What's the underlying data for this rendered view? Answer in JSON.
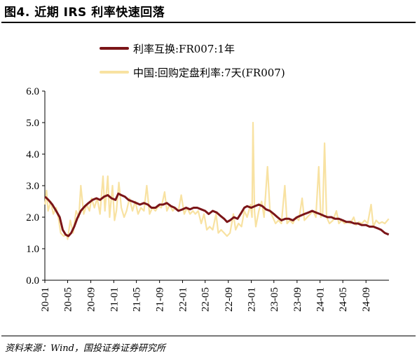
{
  "header": {
    "title": "图4. 近期 IRS 利率快速回落"
  },
  "footer": {
    "source": "资料来源：Wind，国投证券证券研究所"
  },
  "chart_data": {
    "type": "line",
    "title": "",
    "xlabel": "",
    "ylabel": "",
    "ylim": [
      0,
      6
    ],
    "yticks": [
      "0.0",
      "1.0",
      "2.0",
      "3.0",
      "4.0",
      "5.0",
      "6.0"
    ],
    "x_range": [
      "2020-01",
      "2024-12"
    ],
    "xticks": [
      "20-01",
      "20-05",
      "20-09",
      "21-01",
      "21-05",
      "21-09",
      "22-01",
      "22-05",
      "22-09",
      "23-01",
      "23-05",
      "23-09",
      "24-01",
      "24-05",
      "24-09"
    ],
    "grid": false,
    "legend": "top",
    "series": [
      {
        "name": "利率互换:FR007:1年",
        "color": "#7b1518",
        "points": [
          [
            "2020-01-02",
            2.65
          ],
          [
            "2020-01-20",
            2.55
          ],
          [
            "2020-02-10",
            2.4
          ],
          [
            "2020-03-01",
            2.2
          ],
          [
            "2020-03-20",
            2.0
          ],
          [
            "2020-04-05",
            1.6
          ],
          [
            "2020-04-20",
            1.45
          ],
          [
            "2020-05-05",
            1.4
          ],
          [
            "2020-05-20",
            1.5
          ],
          [
            "2020-06-05",
            1.7
          ],
          [
            "2020-06-20",
            1.95
          ],
          [
            "2020-07-10",
            2.2
          ],
          [
            "2020-08-01",
            2.35
          ],
          [
            "2020-08-20",
            2.45
          ],
          [
            "2020-09-10",
            2.55
          ],
          [
            "2020-10-01",
            2.6
          ],
          [
            "2020-10-20",
            2.55
          ],
          [
            "2020-11-10",
            2.65
          ],
          [
            "2020-11-30",
            2.7
          ],
          [
            "2020-12-20",
            2.6
          ],
          [
            "2021-01-10",
            2.55
          ],
          [
            "2021-01-25",
            2.75
          ],
          [
            "2021-02-10",
            2.7
          ],
          [
            "2021-03-01",
            2.65
          ],
          [
            "2021-03-20",
            2.55
          ],
          [
            "2021-04-10",
            2.5
          ],
          [
            "2021-05-01",
            2.45
          ],
          [
            "2021-05-20",
            2.4
          ],
          [
            "2021-06-10",
            2.45
          ],
          [
            "2021-07-01",
            2.4
          ],
          [
            "2021-07-20",
            2.3
          ],
          [
            "2021-08-10",
            2.3
          ],
          [
            "2021-09-01",
            2.4
          ],
          [
            "2021-09-20",
            2.4
          ],
          [
            "2021-10-10",
            2.45
          ],
          [
            "2021-11-01",
            2.35
          ],
          [
            "2021-11-20",
            2.3
          ],
          [
            "2021-12-10",
            2.2
          ],
          [
            "2022-01-01",
            2.25
          ],
          [
            "2022-01-20",
            2.3
          ],
          [
            "2022-02-10",
            2.25
          ],
          [
            "2022-03-01",
            2.3
          ],
          [
            "2022-03-20",
            2.3
          ],
          [
            "2022-04-10",
            2.25
          ],
          [
            "2022-05-01",
            2.2
          ],
          [
            "2022-05-20",
            2.1
          ],
          [
            "2022-06-10",
            2.2
          ],
          [
            "2022-07-01",
            2.15
          ],
          [
            "2022-07-20",
            2.05
          ],
          [
            "2022-08-10",
            1.95
          ],
          [
            "2022-08-25",
            1.85
          ],
          [
            "2022-09-10",
            1.9
          ],
          [
            "2022-10-01",
            2.0
          ],
          [
            "2022-10-20",
            1.95
          ],
          [
            "2022-11-10",
            2.15
          ],
          [
            "2022-11-25",
            2.3
          ],
          [
            "2022-12-10",
            2.35
          ],
          [
            "2023-01-01",
            2.3
          ],
          [
            "2023-01-20",
            2.35
          ],
          [
            "2023-02-10",
            2.4
          ],
          [
            "2023-03-01",
            2.35
          ],
          [
            "2023-03-20",
            2.25
          ],
          [
            "2023-04-10",
            2.2
          ],
          [
            "2023-05-01",
            2.1
          ],
          [
            "2023-05-20",
            2.0
          ],
          [
            "2023-06-10",
            1.9
          ],
          [
            "2023-07-01",
            1.95
          ],
          [
            "2023-07-20",
            1.95
          ],
          [
            "2023-08-10",
            1.9
          ],
          [
            "2023-09-01",
            2.0
          ],
          [
            "2023-09-20",
            2.05
          ],
          [
            "2023-10-10",
            2.1
          ],
          [
            "2023-11-01",
            2.15
          ],
          [
            "2023-11-20",
            2.2
          ],
          [
            "2023-12-10",
            2.15
          ],
          [
            "2024-01-01",
            2.1
          ],
          [
            "2024-01-20",
            2.05
          ],
          [
            "2024-02-10",
            2.0
          ],
          [
            "2024-03-01",
            2.0
          ],
          [
            "2024-03-20",
            1.95
          ],
          [
            "2024-04-10",
            1.95
          ],
          [
            "2024-05-01",
            1.9
          ],
          [
            "2024-05-20",
            1.85
          ],
          [
            "2024-06-10",
            1.85
          ],
          [
            "2024-07-01",
            1.8
          ],
          [
            "2024-07-20",
            1.8
          ],
          [
            "2024-08-10",
            1.75
          ],
          [
            "2024-09-01",
            1.75
          ],
          [
            "2024-09-20",
            1.7
          ],
          [
            "2024-10-10",
            1.7
          ],
          [
            "2024-11-01",
            1.65
          ],
          [
            "2024-11-20",
            1.6
          ],
          [
            "2024-12-10",
            1.5
          ],
          [
            "2024-12-31",
            1.45
          ]
        ]
      },
      {
        "name": "中国:回购定盘利率:7天(FR007)",
        "color": "#f8e2a2",
        "points": [
          [
            "2020-01-02",
            2.4
          ],
          [
            "2020-01-10",
            2.85
          ],
          [
            "2020-01-18",
            2.2
          ],
          [
            "2020-02-01",
            2.5
          ],
          [
            "2020-02-15",
            2.1
          ],
          [
            "2020-03-01",
            2.3
          ],
          [
            "2020-03-15",
            1.9
          ],
          [
            "2020-03-25",
            1.5
          ],
          [
            "2020-04-10",
            1.4
          ],
          [
            "2020-04-25",
            1.45
          ],
          [
            "2020-05-01",
            1.3
          ],
          [
            "2020-05-15",
            1.9
          ],
          [
            "2020-05-30",
            1.5
          ],
          [
            "2020-06-15",
            2.2
          ],
          [
            "2020-06-30",
            2.0
          ],
          [
            "2020-07-10",
            3.0
          ],
          [
            "2020-07-25",
            2.1
          ],
          [
            "2020-08-10",
            2.4
          ],
          [
            "2020-08-25",
            2.2
          ],
          [
            "2020-09-05",
            2.6
          ],
          [
            "2020-09-20",
            2.3
          ],
          [
            "2020-10-05",
            2.6
          ],
          [
            "2020-10-20",
            2.1
          ],
          [
            "2020-11-05",
            3.3
          ],
          [
            "2020-11-15",
            2.2
          ],
          [
            "2020-11-30",
            3.3
          ],
          [
            "2020-12-10",
            2.0
          ],
          [
            "2020-12-25",
            3.0
          ],
          [
            "2021-01-05",
            1.9
          ],
          [
            "2021-01-15",
            2.2
          ],
          [
            "2021-01-28",
            3.1
          ],
          [
            "2021-02-10",
            2.3
          ],
          [
            "2021-02-25",
            2.0
          ],
          [
            "2021-03-10",
            2.2
          ],
          [
            "2021-03-25",
            2.6
          ],
          [
            "2021-04-10",
            2.2
          ],
          [
            "2021-04-25",
            2.5
          ],
          [
            "2021-05-10",
            2.1
          ],
          [
            "2021-05-25",
            2.3
          ],
          [
            "2021-06-10",
            2.2
          ],
          [
            "2021-06-25",
            3.0
          ],
          [
            "2021-07-10",
            2.1
          ],
          [
            "2021-07-25",
            2.3
          ],
          [
            "2021-08-10",
            2.2
          ],
          [
            "2021-08-25",
            2.35
          ],
          [
            "2021-09-10",
            2.3
          ],
          [
            "2021-09-28",
            2.8
          ],
          [
            "2021-10-10",
            2.2
          ],
          [
            "2021-10-25",
            2.4
          ],
          [
            "2021-11-10",
            2.2
          ],
          [
            "2021-11-25",
            2.3
          ],
          [
            "2021-12-10",
            2.2
          ],
          [
            "2021-12-25",
            2.7
          ],
          [
            "2022-01-10",
            2.1
          ],
          [
            "2022-01-25",
            2.3
          ],
          [
            "2022-02-10",
            2.1
          ],
          [
            "2022-02-25",
            2.2
          ],
          [
            "2022-03-10",
            2.1
          ],
          [
            "2022-03-25",
            2.2
          ],
          [
            "2022-04-10",
            1.8
          ],
          [
            "2022-04-25",
            2.1
          ],
          [
            "2022-05-10",
            1.6
          ],
          [
            "2022-05-25",
            1.7
          ],
          [
            "2022-06-10",
            1.6
          ],
          [
            "2022-06-28",
            2.1
          ],
          [
            "2022-07-10",
            1.5
          ],
          [
            "2022-07-25",
            1.6
          ],
          [
            "2022-08-10",
            1.5
          ],
          [
            "2022-08-25",
            1.4
          ],
          [
            "2022-09-10",
            1.5
          ],
          [
            "2022-09-28",
            2.1
          ],
          [
            "2022-10-10",
            1.6
          ],
          [
            "2022-10-25",
            1.8
          ],
          [
            "2022-11-10",
            1.7
          ],
          [
            "2022-11-25",
            2.2
          ],
          [
            "2022-12-10",
            2.0
          ],
          [
            "2022-12-28",
            2.4
          ],
          [
            "2023-01-05",
            2.0
          ],
          [
            "2023-01-10",
            5.0
          ],
          [
            "2023-01-18",
            2.2
          ],
          [
            "2023-01-25",
            1.7
          ],
          [
            "2023-02-10",
            2.2
          ],
          [
            "2023-02-25",
            2.5
          ],
          [
            "2023-03-10",
            2.0
          ],
          [
            "2023-03-28",
            3.6
          ],
          [
            "2023-04-10",
            2.2
          ],
          [
            "2023-04-25",
            2.0
          ],
          [
            "2023-05-10",
            1.8
          ],
          [
            "2023-05-25",
            1.9
          ],
          [
            "2023-06-10",
            1.8
          ],
          [
            "2023-06-28",
            3.0
          ],
          [
            "2023-07-10",
            1.8
          ],
          [
            "2023-07-25",
            1.9
          ],
          [
            "2023-08-10",
            1.8
          ],
          [
            "2023-08-25",
            2.0
          ],
          [
            "2023-09-10",
            1.9
          ],
          [
            "2023-09-28",
            2.6
          ],
          [
            "2023-10-10",
            1.9
          ],
          [
            "2023-10-25",
            2.0
          ],
          [
            "2023-11-10",
            2.1
          ],
          [
            "2023-11-25",
            2.2
          ],
          [
            "2023-12-10",
            2.0
          ],
          [
            "2023-12-25",
            3.6
          ],
          [
            "2024-01-05",
            2.0
          ],
          [
            "2024-01-15",
            2.1
          ],
          [
            "2024-01-25",
            4.35
          ],
          [
            "2024-02-05",
            2.0
          ],
          [
            "2024-02-20",
            1.8
          ],
          [
            "2024-03-10",
            1.9
          ],
          [
            "2024-03-28",
            2.2
          ],
          [
            "2024-04-10",
            1.8
          ],
          [
            "2024-04-25",
            1.9
          ],
          [
            "2024-05-10",
            1.8
          ],
          [
            "2024-05-25",
            1.85
          ],
          [
            "2024-06-10",
            1.8
          ],
          [
            "2024-06-28",
            2.0
          ],
          [
            "2024-07-10",
            1.75
          ],
          [
            "2024-07-25",
            1.85
          ],
          [
            "2024-08-10",
            1.8
          ],
          [
            "2024-08-25",
            1.9
          ],
          [
            "2024-09-10",
            1.8
          ],
          [
            "2024-09-28",
            2.4
          ],
          [
            "2024-10-10",
            1.7
          ],
          [
            "2024-10-25",
            1.9
          ],
          [
            "2024-11-10",
            1.8
          ],
          [
            "2024-11-25",
            1.85
          ],
          [
            "2024-12-10",
            1.8
          ],
          [
            "2024-12-31",
            1.95
          ]
        ]
      }
    ]
  }
}
